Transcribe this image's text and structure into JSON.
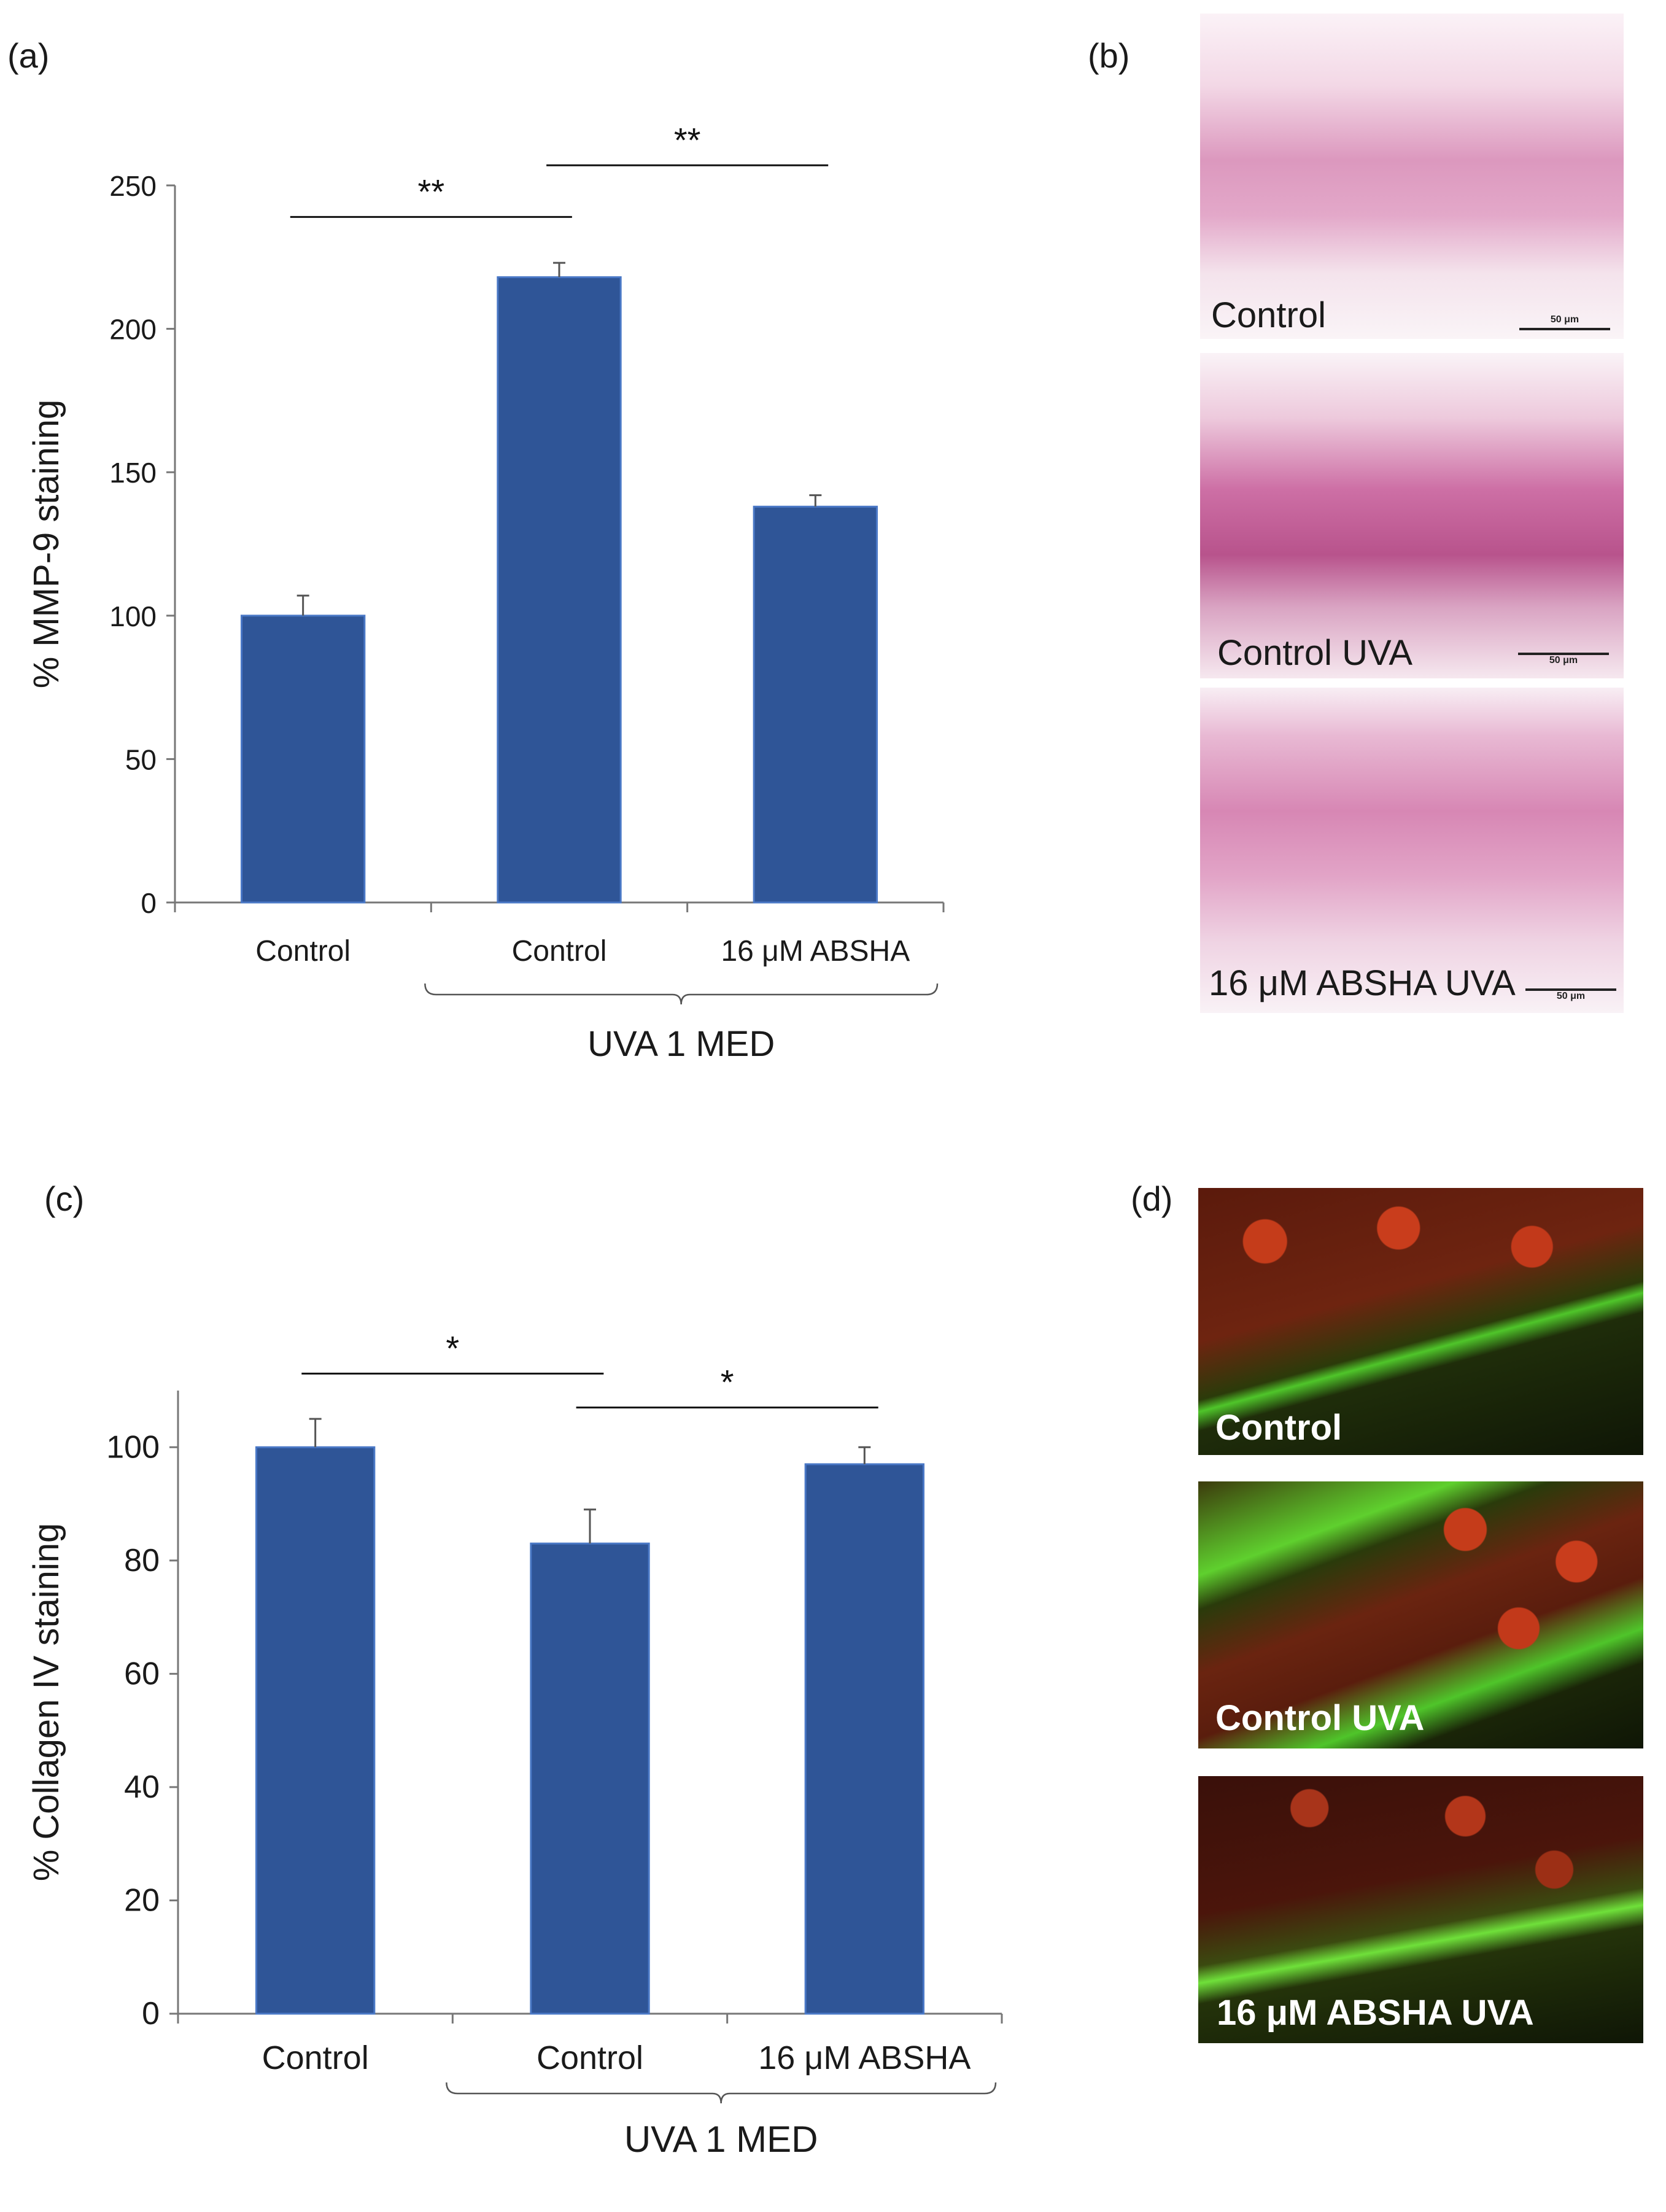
{
  "panels": {
    "a": "(a)",
    "b": "(b)",
    "c": "(c)",
    "d": "(d)"
  },
  "chart_data": [
    {
      "type": "bar",
      "panel": "(a)",
      "title": "",
      "ylabel": "% MMP-9 staining",
      "xlabel": "",
      "categories": [
        "Control",
        "Control",
        "16 μM ABSHA"
      ],
      "values": [
        100,
        218,
        138
      ],
      "errors": [
        7,
        5,
        4
      ],
      "ylim": [
        0,
        250
      ],
      "yticks": [
        0,
        50,
        100,
        150,
        200,
        250
      ],
      "group_label": "UVA 1 MED",
      "group_members": [
        1,
        2
      ],
      "significance": [
        {
          "from": 0,
          "to": 1,
          "label": "**",
          "y": 239
        },
        {
          "from": 1,
          "to": 2,
          "label": "**",
          "y": 257
        }
      ],
      "bar_color": "#2f5597",
      "grid": false
    },
    {
      "type": "bar",
      "panel": "(c)",
      "title": "",
      "ylabel": "% Collagen IV staining",
      "xlabel": "",
      "categories": [
        "Control",
        "Control",
        "16 μM ABSHA"
      ],
      "values": [
        100,
        83,
        97
      ],
      "errors": [
        5,
        6,
        3
      ],
      "ylim": [
        0,
        110
      ],
      "yticks": [
        0,
        20,
        40,
        60,
        80,
        100
      ],
      "group_label": "UVA 1 MED",
      "group_members": [
        1,
        2
      ],
      "significance": [
        {
          "from": 0,
          "to": 1,
          "label": "*",
          "y": 113
        },
        {
          "from": 1,
          "to": 2,
          "label": "*",
          "y": 107
        }
      ],
      "bar_color": "#2f5597",
      "grid": false
    }
  ],
  "micrographs_b": [
    {
      "caption": "Control",
      "scale": "50 μm"
    },
    {
      "caption": "Control UVA",
      "scale": "50 μm"
    },
    {
      "caption": "16 μM ABSHA UVA",
      "scale": "50 μm"
    }
  ],
  "micrographs_d": [
    {
      "caption": "Control"
    },
    {
      "caption": "Control UVA"
    },
    {
      "caption": "16 μM ABSHA UVA"
    }
  ]
}
